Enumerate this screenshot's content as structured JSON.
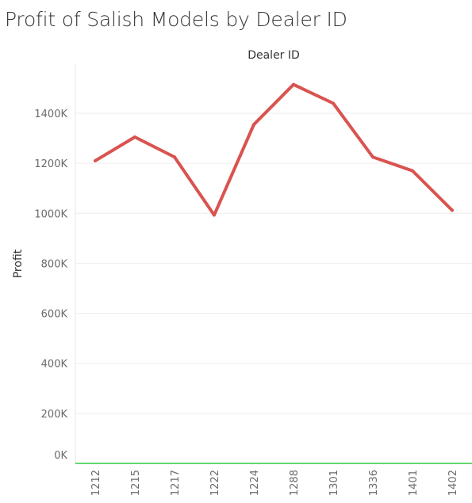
{
  "title": "Profit of Salish Models by Dealer ID",
  "chart_data": {
    "type": "line",
    "title": "Profit of Salish Models by Dealer ID",
    "top_axis_label": "Dealer ID",
    "xlabel": "",
    "ylabel": "Profit",
    "categories": [
      "1212",
      "1215",
      "1217",
      "1222",
      "1224",
      "1288",
      "1301",
      "1336",
      "1401",
      "1402"
    ],
    "series": [
      {
        "values": [
          1210000,
          1305000,
          1225000,
          993000,
          1355000,
          1515000,
          1440000,
          1225000,
          1170000,
          1012000
        ]
      }
    ],
    "ylim": [
      0,
      1600000
    ],
    "y_ticks": [
      0,
      200000,
      400000,
      600000,
      800000,
      1000000,
      1200000,
      1400000
    ],
    "y_tick_labels": [
      "0K",
      "200K",
      "400K",
      "600K",
      "800K",
      "1000K",
      "1200K",
      "1400K"
    ],
    "grid": true,
    "line_color": "#d9534f",
    "zero_line_color": "#2ecc40",
    "grid_color": "#eeeeee"
  }
}
